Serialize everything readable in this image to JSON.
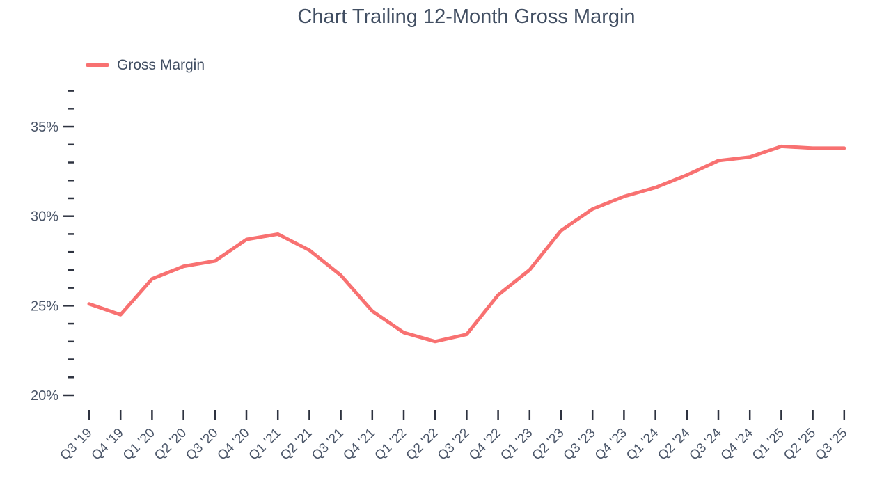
{
  "chart_data": {
    "type": "line",
    "title": "Chart Trailing 12-Month Gross Margin",
    "categories": [
      "Q3 '19",
      "Q4 '19",
      "Q1 '20",
      "Q2 '20",
      "Q3 '20",
      "Q4 '20",
      "Q1 '21",
      "Q2 '21",
      "Q3 '21",
      "Q4 '21",
      "Q1 '22",
      "Q2 '22",
      "Q3 '22",
      "Q4 '22",
      "Q1 '23",
      "Q2 '23",
      "Q3 '23",
      "Q4 '23",
      "Q1 '24",
      "Q2 '24",
      "Q3 '24",
      "Q4 '24",
      "Q1 '25",
      "Q2 '25",
      "Q3 '25"
    ],
    "series": [
      {
        "name": "Gross Margin",
        "color": "#f87171",
        "values": [
          25.1,
          24.5,
          26.5,
          27.2,
          27.5,
          28.7,
          29.0,
          28.1,
          26.7,
          24.7,
          23.5,
          23.0,
          23.4,
          25.6,
          27.0,
          29.2,
          30.4,
          31.1,
          31.6,
          32.3,
          33.1,
          33.3,
          33.9,
          33.8,
          33.8
        ]
      }
    ],
    "xlabel": "",
    "ylabel": "",
    "y_axis": {
      "min": 20,
      "max": 37,
      "tick_step": 1,
      "labeled_ticks": [
        20,
        25,
        30,
        35
      ],
      "labeled_tick_format": [
        "20%",
        "25%",
        "30%",
        "35%"
      ],
      "unit": "%",
      "ylim": [
        20,
        37
      ]
    },
    "x_axis": {
      "tick_label_rotation": -45
    },
    "legend": {
      "position": "top-left",
      "entries": [
        "Gross Margin"
      ]
    },
    "grid": false
  },
  "colors": {
    "line": "#f87171",
    "title_text": "#414e62",
    "axis_text": "#4a5568",
    "tick": "#2e3340",
    "background": "#ffffff"
  }
}
